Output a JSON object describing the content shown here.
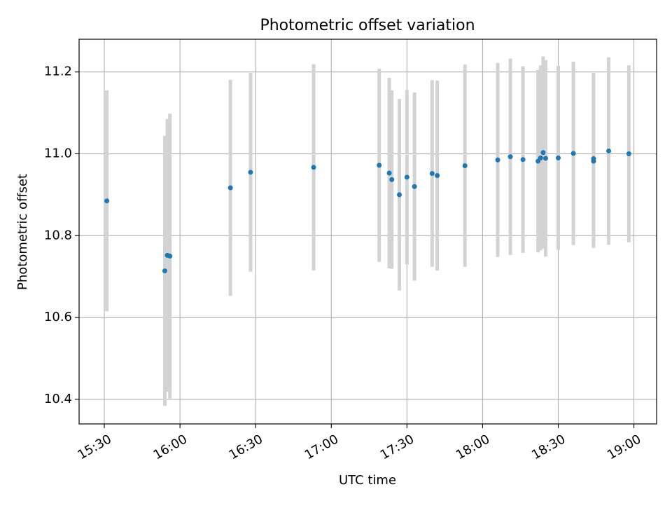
{
  "chart_data": {
    "type": "scatter",
    "title": "Photometric offset variation",
    "xlabel": "UTC time",
    "ylabel": "Photometric offset",
    "x_ticks": [
      "15:30",
      "16:00",
      "16:30",
      "17:00",
      "17:30",
      "18:00",
      "18:30",
      "19:00"
    ],
    "y_ticks": [
      "10.4",
      "10.6",
      "10.8",
      "11.0",
      "11.2"
    ],
    "xlim": [
      "15:20",
      "19:09"
    ],
    "ylim": [
      10.34,
      11.28
    ],
    "grid": true,
    "point_color": "#1f77b4",
    "errorbar_color": "#d3d3d3",
    "points": [
      {
        "t": "15:31",
        "y": 10.885,
        "err": 0.27
      },
      {
        "t": "15:54",
        "y": 10.714,
        "err": 0.33
      },
      {
        "t": "15:55",
        "y": 10.752,
        "err": 0.333
      },
      {
        "t": "15:56",
        "y": 10.75,
        "err": 0.348
      },
      {
        "t": "16:20",
        "y": 10.917,
        "err": 0.264
      },
      {
        "t": "16:28",
        "y": 10.955,
        "err": 0.243
      },
      {
        "t": "16:53",
        "y": 10.967,
        "err": 0.252
      },
      {
        "t": "17:19",
        "y": 10.972,
        "err": 0.236
      },
      {
        "t": "17:23",
        "y": 10.953,
        "err": 0.233
      },
      {
        "t": "17:24",
        "y": 10.937,
        "err": 0.218
      },
      {
        "t": "17:27",
        "y": 10.9,
        "err": 0.234
      },
      {
        "t": "17:30",
        "y": 10.943,
        "err": 0.213
      },
      {
        "t": "17:33",
        "y": 10.92,
        "err": 0.23
      },
      {
        "t": "17:40",
        "y": 10.952,
        "err": 0.228
      },
      {
        "t": "17:42",
        "y": 10.947,
        "err": 0.232
      },
      {
        "t": "17:53",
        "y": 10.971,
        "err": 0.247
      },
      {
        "t": "18:06",
        "y": 10.985,
        "err": 0.237
      },
      {
        "t": "18:11",
        "y": 10.993,
        "err": 0.24
      },
      {
        "t": "18:16",
        "y": 10.986,
        "err": 0.228
      },
      {
        "t": "18:22",
        "y": 10.982,
        "err": 0.223
      },
      {
        "t": "18:23",
        "y": 10.99,
        "err": 0.226
      },
      {
        "t": "18:24",
        "y": 11.003,
        "err": 0.235
      },
      {
        "t": "18:25",
        "y": 10.989,
        "err": 0.24
      },
      {
        "t": "18:30",
        "y": 10.99,
        "err": 0.225
      },
      {
        "t": "18:36",
        "y": 11.001,
        "err": 0.224
      },
      {
        "t": "18:44",
        "y": 10.982,
        "err": 0.212
      },
      {
        "t": "18:44",
        "y": 10.988,
        "err": 0.21
      },
      {
        "t": "18:50",
        "y": 11.007,
        "err": 0.229
      },
      {
        "t": "18:58",
        "y": 11.0,
        "err": 0.216
      }
    ]
  }
}
